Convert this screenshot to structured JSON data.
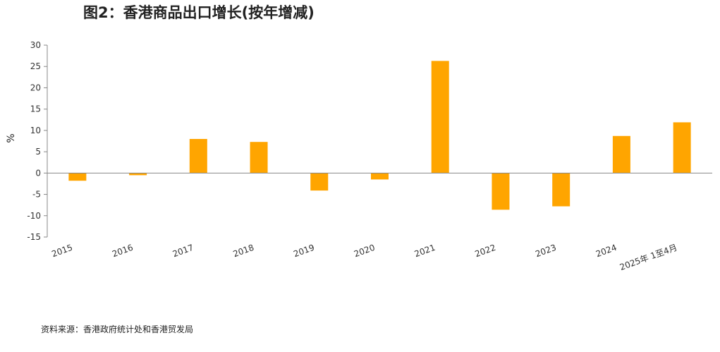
{
  "title": "图2：香港商品出口增长(按年增减)",
  "source": "资料来源：香港政府统计处和香港贸发局",
  "colors": {
    "bar": "#FFA500",
    "axis": "#888888"
  },
  "chart_data": {
    "type": "bar",
    "title": "图2：香港商品出口增长(按年增减)",
    "xlabel": "",
    "ylabel": "%",
    "ylim": [
      -15,
      30
    ],
    "yticks": [
      30,
      25,
      20,
      15,
      10,
      5,
      0,
      -5,
      -10,
      -15
    ],
    "grid": false,
    "categories": [
      "2015",
      "2016",
      "2017",
      "2018",
      "2019",
      "2020",
      "2021",
      "2022",
      "2023",
      "2024",
      "2025年 1至4月"
    ],
    "values": [
      -1.8,
      -0.5,
      8.0,
      7.3,
      -4.1,
      -1.5,
      26.3,
      -8.6,
      -7.8,
      8.7,
      11.9
    ]
  }
}
